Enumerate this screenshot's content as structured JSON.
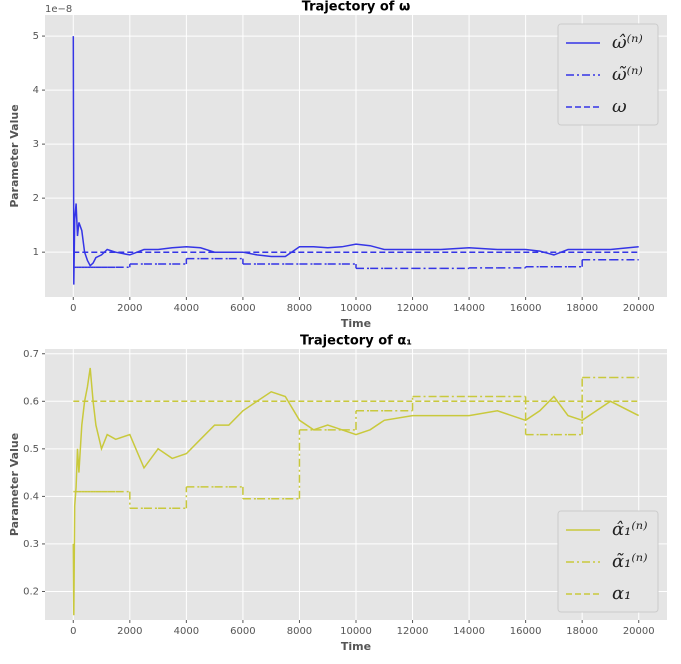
{
  "chart_data": [
    {
      "type": "line",
      "title": "Trajectory of ω",
      "xlabel": "Time",
      "ylabel": "Parameter Value",
      "offset_text": "1e−8",
      "x": [
        0,
        20,
        50,
        100,
        150,
        200,
        300,
        400,
        500,
        600,
        700,
        800,
        1000,
        1200,
        1500,
        2000,
        2500,
        3000,
        3500,
        4000,
        4500,
        5000,
        5500,
        6000,
        6500,
        7000,
        7500,
        8000,
        8500,
        9000,
        9500,
        10000,
        10500,
        11000,
        12000,
        13000,
        14000,
        15000,
        16000,
        16500,
        17000,
        17500,
        18000,
        19000,
        20000
      ],
      "series": [
        {
          "name": "ω̂⁽ⁿ⁾",
          "color": "#3535e6",
          "style": "solid",
          "values": [
            5.0,
            0.4,
            1.6,
            1.9,
            1.3,
            1.55,
            1.4,
            1.0,
            0.85,
            0.75,
            0.8,
            0.9,
            0.95,
            1.05,
            1.0,
            0.95,
            1.05,
            1.05,
            1.08,
            1.1,
            1.08,
            1.0,
            1.0,
            1.0,
            0.95,
            0.92,
            0.92,
            1.1,
            1.1,
            1.08,
            1.1,
            1.15,
            1.12,
            1.05,
            1.05,
            1.05,
            1.08,
            1.05,
            1.05,
            1.02,
            0.95,
            1.05,
            1.05,
            1.05,
            1.1
          ]
        },
        {
          "name": "ω̃⁽ⁿ⁾",
          "color": "#3535e6",
          "style": "dashdot",
          "drawstyle": "steps-post",
          "values": [
            0.72,
            0.72,
            0.72,
            0.72,
            0.72,
            0.72,
            0.72,
            0.72,
            0.72,
            0.72,
            0.72,
            0.72,
            0.72,
            0.72,
            0.72,
            0.78,
            0.78,
            0.78,
            0.78,
            0.88,
            0.88,
            0.88,
            0.88,
            0.78,
            0.78,
            0.78,
            0.78,
            0.78,
            0.78,
            0.78,
            0.78,
            0.7,
            0.7,
            0.7,
            0.7,
            0.7,
            0.71,
            0.71,
            0.73,
            0.73,
            0.73,
            0.73,
            0.86,
            0.86,
            0.86
          ]
        },
        {
          "name": "ω",
          "color": "#3535e6",
          "style": "dashed",
          "values": [
            1.0,
            1.0,
            1.0,
            1.0,
            1.0,
            1.0,
            1.0,
            1.0,
            1.0,
            1.0,
            1.0,
            1.0,
            1.0,
            1.0,
            1.0,
            1.0,
            1.0,
            1.0,
            1.0,
            1.0,
            1.0,
            1.0,
            1.0,
            1.0,
            1.0,
            1.0,
            1.0,
            1.0,
            1.0,
            1.0,
            1.0,
            1.0,
            1.0,
            1.0,
            1.0,
            1.0,
            1.0,
            1.0,
            1.0,
            1.0,
            1.0,
            1.0,
            1.0,
            1.0,
            1.0
          ]
        }
      ],
      "xlim": [
        -1000,
        21000
      ],
      "xticks": [
        0,
        2000,
        4000,
        6000,
        8000,
        10000,
        12000,
        14000,
        16000,
        18000,
        20000
      ],
      "ylim": [
        0.17,
        5.39
      ],
      "yticks": [
        1,
        2,
        3,
        4,
        5
      ],
      "grid": true,
      "legend": "upper right"
    },
    {
      "type": "line",
      "title": "Trajectory of α₁",
      "xlabel": "Time",
      "ylabel": "Parameter Value",
      "x": [
        0,
        20,
        50,
        100,
        150,
        200,
        300,
        400,
        500,
        600,
        700,
        800,
        1000,
        1200,
        1500,
        2000,
        2500,
        3000,
        3500,
        4000,
        4500,
        5000,
        5500,
        6000,
        6500,
        7000,
        7500,
        8000,
        8500,
        9000,
        9500,
        10000,
        10500,
        11000,
        12000,
        13000,
        14000,
        15000,
        16000,
        16500,
        17000,
        17500,
        18000,
        19000,
        20000
      ],
      "series": [
        {
          "name": "α̂₁⁽ⁿ⁾",
          "color": "#c9c93c",
          "style": "solid",
          "values": [
            0.3,
            0.15,
            0.38,
            0.42,
            0.5,
            0.45,
            0.55,
            0.6,
            0.63,
            0.67,
            0.6,
            0.55,
            0.5,
            0.53,
            0.52,
            0.53,
            0.46,
            0.5,
            0.48,
            0.49,
            0.52,
            0.55,
            0.55,
            0.58,
            0.6,
            0.62,
            0.61,
            0.56,
            0.54,
            0.55,
            0.54,
            0.53,
            0.54,
            0.56,
            0.57,
            0.57,
            0.57,
            0.58,
            0.56,
            0.58,
            0.61,
            0.57,
            0.56,
            0.6,
            0.57
          ]
        },
        {
          "name": "α̃₁⁽ⁿ⁾",
          "color": "#c9c93c",
          "style": "dashdot",
          "drawstyle": "steps-post",
          "values": [
            0.41,
            0.41,
            0.41,
            0.41,
            0.41,
            0.41,
            0.41,
            0.41,
            0.41,
            0.41,
            0.41,
            0.41,
            0.41,
            0.41,
            0.41,
            0.375,
            0.375,
            0.375,
            0.375,
            0.42,
            0.42,
            0.42,
            0.42,
            0.395,
            0.395,
            0.395,
            0.395,
            0.54,
            0.54,
            0.54,
            0.54,
            0.58,
            0.58,
            0.58,
            0.61,
            0.61,
            0.61,
            0.61,
            0.53,
            0.53,
            0.53,
            0.53,
            0.65,
            0.65,
            0.65
          ]
        },
        {
          "name": "α₁",
          "color": "#c9c93c",
          "style": "dashed",
          "values": [
            0.6,
            0.6,
            0.6,
            0.6,
            0.6,
            0.6,
            0.6,
            0.6,
            0.6,
            0.6,
            0.6,
            0.6,
            0.6,
            0.6,
            0.6,
            0.6,
            0.6,
            0.6,
            0.6,
            0.6,
            0.6,
            0.6,
            0.6,
            0.6,
            0.6,
            0.6,
            0.6,
            0.6,
            0.6,
            0.6,
            0.6,
            0.6,
            0.6,
            0.6,
            0.6,
            0.6,
            0.6,
            0.6,
            0.6,
            0.6,
            0.6,
            0.6,
            0.6,
            0.6,
            0.6
          ]
        }
      ],
      "xlim": [
        -1000,
        21000
      ],
      "xticks": [
        0,
        2000,
        4000,
        6000,
        8000,
        10000,
        12000,
        14000,
        16000,
        18000,
        20000
      ],
      "ylim": [
        0.14,
        0.71
      ],
      "yticks": [
        0.2,
        0.3,
        0.4,
        0.5,
        0.6,
        0.7
      ],
      "grid": true,
      "legend": "lower right"
    }
  ]
}
